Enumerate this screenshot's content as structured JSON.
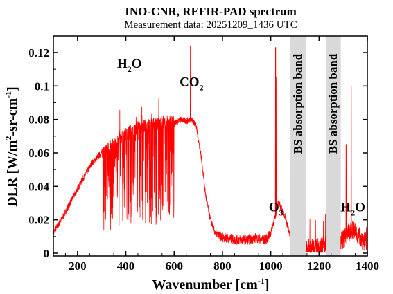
{
  "chart_data": {
    "type": "line",
    "title": "INO-CNR, REFIR-PAD spectrum",
    "subtitle": "Measurement data: 20251209_1436 UTC",
    "xlabel": "Wavenumber [cm-1]",
    "xlabel_main": "Wavenumber [cm",
    "xlabel_sup": "-1",
    "xlabel_end": "]",
    "ylabel": "DLR [W/m2-sr-cm-1]",
    "ylabel_parts": {
      "a": "DLR [W/m",
      "b": "2",
      "c": "-sr-cm",
      "d": "-1",
      "e": "]"
    },
    "xlim": [
      100,
      1400
    ],
    "ylim": [
      0,
      0.13
    ],
    "xticks": [
      200,
      400,
      600,
      800,
      1000,
      1200,
      1400
    ],
    "xtick_labels": [
      "200",
      "400",
      "600",
      "800",
      "1000",
      "1200",
      "1400"
    ],
    "yticks": [
      0,
      0.02,
      0.04,
      0.06,
      0.08,
      0.1,
      0.12
    ],
    "ytick_labels": [
      "0",
      "0.02",
      "0.04",
      "0.06",
      "0.08",
      "0.1",
      "0.12"
    ],
    "grid": false,
    "legend": "none",
    "line_color": "#ff0000",
    "band_color": "#d9d9d9",
    "series": [
      {
        "x": [
          100,
          140,
          180,
          220,
          260,
          300,
          330,
          360,
          390,
          420,
          450,
          480,
          510,
          540,
          570,
          600,
          630,
          650,
          670,
          690,
          710,
          730,
          750,
          770,
          790,
          820,
          860,
          900,
          940,
          980,
          1000,
          1010,
          1020,
          1030,
          1040,
          1050,
          1060,
          1080,
          1100,
          1140,
          1180,
          1220,
          1260,
          1300,
          1320,
          1340,
          1360,
          1380,
          1400
        ],
        "y": [
          0.012,
          0.022,
          0.033,
          0.044,
          0.054,
          0.06,
          0.063,
          0.066,
          0.07,
          0.073,
          0.075,
          0.076,
          0.077,
          0.078,
          0.079,
          0.078,
          0.08,
          0.079,
          0.08,
          0.077,
          0.06,
          0.035,
          0.02,
          0.012,
          0.01,
          0.009,
          0.008,
          0.008,
          0.009,
          0.008,
          0.012,
          0.018,
          0.022,
          0.03,
          0.028,
          0.025,
          0.022,
          0.01,
          0.005,
          0.002,
          0.003,
          0.005,
          0.006,
          0.008,
          0.012,
          0.014,
          0.011,
          0.008,
          0.006
        ]
      }
    ],
    "absorption_bands": [
      {
        "label": "BS absorption band",
        "x_range": [
          1080,
          1145
        ]
      },
      {
        "label": "BS absorption band",
        "x_range": [
          1230,
          1290
        ]
      }
    ],
    "annotations": [
      {
        "id": "h2o-left",
        "main": "H",
        "sub": "2",
        "tail": "O",
        "x": 415,
        "y": 0.111
      },
      {
        "id": "co2",
        "main": "CO",
        "sub": "2",
        "tail": "",
        "x": 672,
        "y": 0.1
      },
      {
        "id": "o3",
        "main": "O",
        "sub": "3",
        "tail": "",
        "x": 1022,
        "y": 0.025
      },
      {
        "id": "h2o-right",
        "main": "H",
        "sub": "2",
        "tail": "O",
        "x": 1340,
        "y": 0.025
      }
    ]
  }
}
